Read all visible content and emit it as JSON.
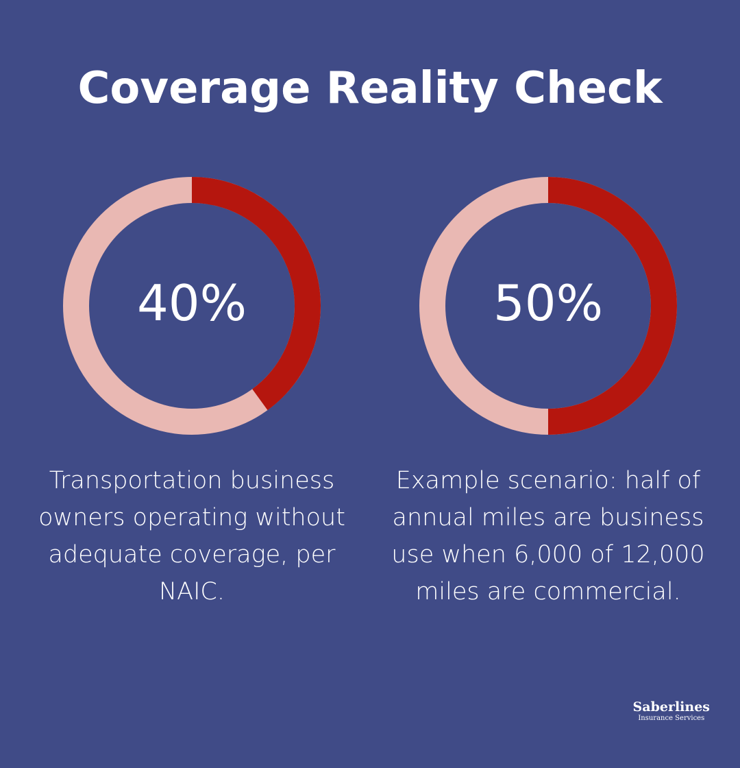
{
  "title": "Coverage Reality Check",
  "chart_data": [
    {
      "type": "donut",
      "values": [
        40
      ],
      "value_labels": [
        "40%"
      ],
      "color": "#b5160e",
      "track_color": "#e9b8b3",
      "caption": "Transportation business owners operating without adequate coverage, per NAIC."
    },
    {
      "type": "donut",
      "values": [
        50
      ],
      "value_labels": [
        "50%"
      ],
      "color": "#b5160e",
      "track_color": "#e9b8b3",
      "caption": "Example scenario: half of annual miles are business use when 6,000 of 12,000 miles are commercial."
    }
  ],
  "brand": {
    "name": "Saberlines",
    "tagline": "Insurance Services"
  }
}
